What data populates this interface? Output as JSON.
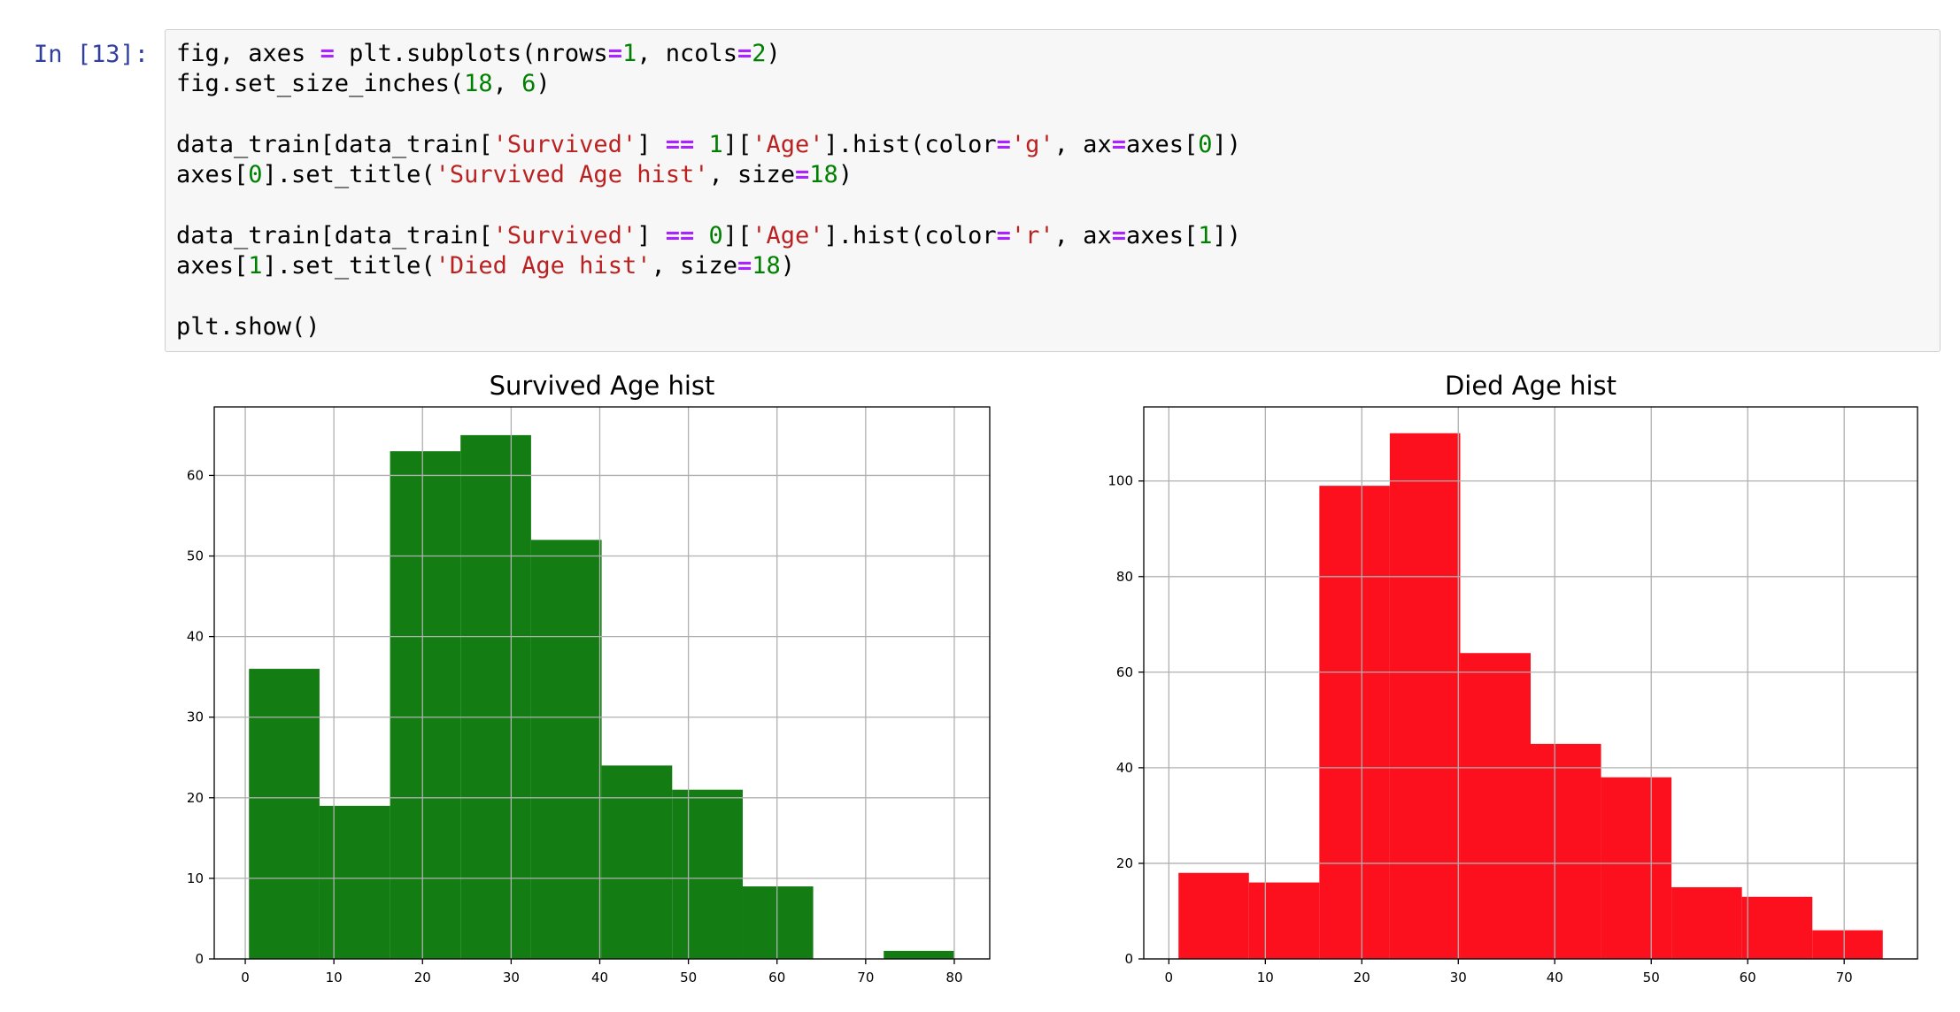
{
  "cell": {
    "prompt": "In [13]:",
    "code_lines": [
      [
        {
          "t": "fig, axes "
        },
        {
          "t": "=",
          "c": "op"
        },
        {
          "t": " plt.subplots(nrows"
        },
        {
          "t": "=",
          "c": "op"
        },
        {
          "t": "1",
          "c": "num"
        },
        {
          "t": ", ncols"
        },
        {
          "t": "=",
          "c": "op"
        },
        {
          "t": "2",
          "c": "num"
        },
        {
          "t": ")"
        }
      ],
      [
        {
          "t": "fig.set_size_inches("
        },
        {
          "t": "18",
          "c": "num"
        },
        {
          "t": ", "
        },
        {
          "t": "6",
          "c": "num"
        },
        {
          "t": ")"
        }
      ],
      [],
      [
        {
          "t": "data_train[data_train["
        },
        {
          "t": "'Survived'",
          "c": "str"
        },
        {
          "t": "] "
        },
        {
          "t": "==",
          "c": "op"
        },
        {
          "t": " "
        },
        {
          "t": "1",
          "c": "num"
        },
        {
          "t": "]["
        },
        {
          "t": "'Age'",
          "c": "str"
        },
        {
          "t": "].hist(color"
        },
        {
          "t": "=",
          "c": "op"
        },
        {
          "t": "'g'",
          "c": "str"
        },
        {
          "t": ", ax"
        },
        {
          "t": "=",
          "c": "op"
        },
        {
          "t": "axes["
        },
        {
          "t": "0",
          "c": "num"
        },
        {
          "t": "])"
        }
      ],
      [
        {
          "t": "axes["
        },
        {
          "t": "0",
          "c": "num"
        },
        {
          "t": "].set_title("
        },
        {
          "t": "'Survived Age hist'",
          "c": "str"
        },
        {
          "t": ", size"
        },
        {
          "t": "=",
          "c": "op"
        },
        {
          "t": "18",
          "c": "num"
        },
        {
          "t": ")"
        }
      ],
      [],
      [
        {
          "t": "data_train[data_train["
        },
        {
          "t": "'Survived'",
          "c": "str"
        },
        {
          "t": "] "
        },
        {
          "t": "==",
          "c": "op"
        },
        {
          "t": " "
        },
        {
          "t": "0",
          "c": "num"
        },
        {
          "t": "]["
        },
        {
          "t": "'Age'",
          "c": "str"
        },
        {
          "t": "].hist(color"
        },
        {
          "t": "=",
          "c": "op"
        },
        {
          "t": "'r'",
          "c": "str"
        },
        {
          "t": ", ax"
        },
        {
          "t": "=",
          "c": "op"
        },
        {
          "t": "axes["
        },
        {
          "t": "1",
          "c": "num"
        },
        {
          "t": "])"
        }
      ],
      [
        {
          "t": "axes["
        },
        {
          "t": "1",
          "c": "num"
        },
        {
          "t": "].set_title("
        },
        {
          "t": "'Died Age hist'",
          "c": "str"
        },
        {
          "t": ", size"
        },
        {
          "t": "=",
          "c": "op"
        },
        {
          "t": "18",
          "c": "num"
        },
        {
          "t": ")"
        }
      ],
      [],
      [
        {
          "t": "plt.show()"
        }
      ]
    ]
  },
  "chart_data": [
    {
      "type": "bar",
      "title": "Survived Age hist",
      "color": "#137C13",
      "grid": true,
      "xlim": [
        -3.5,
        84
      ],
      "ylim": [
        0,
        68.5
      ],
      "xticks": [
        0,
        10,
        20,
        30,
        40,
        50,
        60,
        70,
        80
      ],
      "yticks": [
        0,
        10,
        20,
        30,
        40,
        50,
        60
      ],
      "bins": [
        {
          "x0": 0.42,
          "x1": 8.38,
          "value": 36
        },
        {
          "x0": 8.38,
          "x1": 16.34,
          "value": 19
        },
        {
          "x0": 16.34,
          "x1": 24.29,
          "value": 63
        },
        {
          "x0": 24.29,
          "x1": 32.25,
          "value": 65
        },
        {
          "x0": 32.25,
          "x1": 40.21,
          "value": 52
        },
        {
          "x0": 40.21,
          "x1": 48.17,
          "value": 24
        },
        {
          "x0": 48.17,
          "x1": 56.13,
          "value": 21
        },
        {
          "x0": 56.13,
          "x1": 64.08,
          "value": 9
        },
        {
          "x0": 64.08,
          "x1": 72.04,
          "value": 0
        },
        {
          "x0": 72.04,
          "x1": 80.0,
          "value": 1
        }
      ]
    },
    {
      "type": "bar",
      "title": "Died Age hist",
      "color": "#FC101E",
      "grid": true,
      "xlim": [
        -2.6,
        77.6
      ],
      "ylim": [
        0,
        115.5
      ],
      "xticks": [
        0,
        10,
        20,
        30,
        40,
        50,
        60,
        70
      ],
      "yticks": [
        0,
        20,
        40,
        60,
        80,
        100
      ],
      "bins": [
        {
          "x0": 1.0,
          "x1": 8.3,
          "value": 18
        },
        {
          "x0": 8.3,
          "x1": 15.6,
          "value": 16
        },
        {
          "x0": 15.6,
          "x1": 22.9,
          "value": 99
        },
        {
          "x0": 22.9,
          "x1": 30.2,
          "value": 110
        },
        {
          "x0": 30.2,
          "x1": 37.5,
          "value": 64
        },
        {
          "x0": 37.5,
          "x1": 44.8,
          "value": 45
        },
        {
          "x0": 44.8,
          "x1": 52.1,
          "value": 38
        },
        {
          "x0": 52.1,
          "x1": 59.4,
          "value": 15
        },
        {
          "x0": 59.4,
          "x1": 66.7,
          "value": 13
        },
        {
          "x0": 66.7,
          "x1": 74.0,
          "value": 6
        }
      ]
    }
  ]
}
